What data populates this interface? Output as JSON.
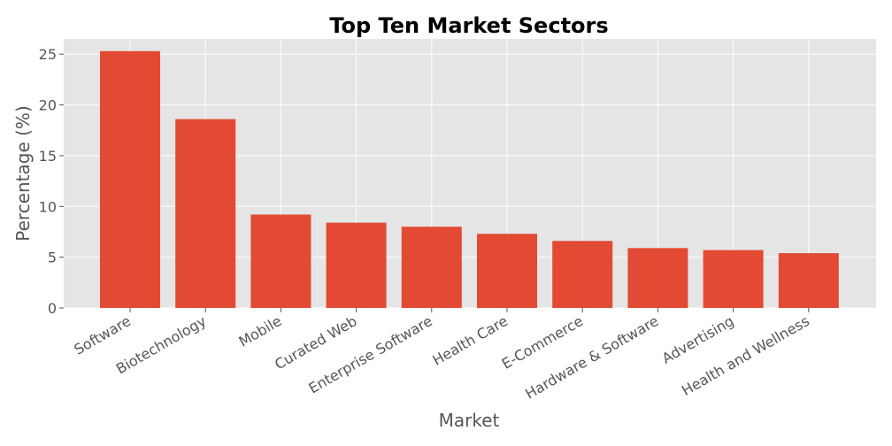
{
  "chart_data": {
    "type": "bar",
    "title": "Top Ten Market Sectors",
    "xlabel": "Market",
    "ylabel": "Percentage (%)",
    "categories": [
      "Software",
      "Biotechnology",
      "Mobile",
      "Curated Web",
      "Enterprise Software",
      "Health Care",
      "E-Commerce",
      "Hardware & Software",
      "Advertising",
      "Health and Wellness"
    ],
    "values": [
      25.3,
      18.6,
      9.2,
      8.4,
      8.0,
      7.3,
      6.6,
      5.9,
      5.7,
      5.4
    ],
    "ylim": [
      0,
      26.5
    ],
    "yticks": [
      0,
      5,
      10,
      15,
      20,
      25
    ],
    "grid": true,
    "colors": {
      "bar": "#E24A33",
      "plot_background": "#E5E5E5",
      "grid": "#FFFFFF"
    }
  }
}
